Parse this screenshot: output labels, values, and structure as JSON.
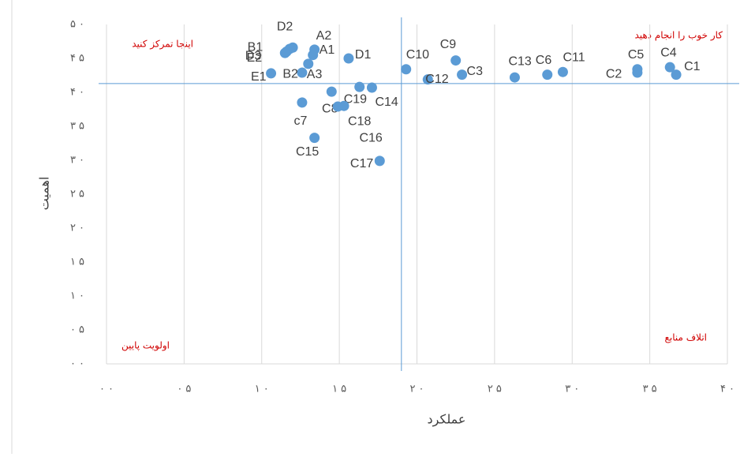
{
  "chart_data": {
    "type": "scatter",
    "x_label": "عملکرد",
    "y_label": "اهمیت",
    "annotations": [
      "اینجا تمرکز کنید",
      "کار خوب را انجام دهید",
      "اولویت پایین",
      "اتلاف منابع"
    ],
    "point_labels": [
      "C1",
      "C4",
      "C5",
      "C2",
      "C11",
      "C6",
      "C13",
      "C9",
      "C3",
      "C12",
      "C10",
      "D1",
      "A2",
      "A1",
      "A3",
      "D2",
      "E2",
      "B1",
      "D3",
      "B2",
      "E1",
      "c7",
      "C8",
      "C19",
      "C14",
      "C18",
      "C16",
      "C15",
      "C17"
    ],
    "x": [
      36.7,
      36.3,
      34.2,
      34.2,
      29.4,
      28.4,
      26.3,
      22.5,
      22.9,
      20.7,
      19.3,
      15.6,
      13.4,
      13.3,
      13.0,
      12.0,
      11.8,
      11.6,
      11.5,
      12.6,
      10.6,
      12.6,
      14.5,
      16.3,
      17.1,
      15.3,
      14.9,
      13.4,
      17.6
    ],
    "values": [
      42.6,
      43.7,
      43.4,
      42.9,
      43.0,
      42.6,
      42.2,
      44.7,
      42.6,
      41.9,
      43.4,
      45.0,
      46.3,
      45.5,
      44.2,
      46.6,
      46.4,
      46.0,
      45.8,
      42.9,
      42.8,
      38.5,
      40.1,
      40.8,
      40.7,
      38.0,
      37.9,
      33.3,
      29.9
    ],
    "color": "#5b9bd5",
    "reference_lines": {
      "x": 19.0,
      "y": 41.3
    },
    "xlim": [
      0,
      40
    ],
    "ylim": [
      0,
      50
    ],
    "xticks": [
      {
        "value": 0,
        "label": "۰ ۰"
      },
      {
        "value": 5,
        "label": "۰ ۵"
      },
      {
        "value": 10,
        "label": "۱ ۰"
      },
      {
        "value": 15,
        "label": "۱ ۵"
      },
      {
        "value": 20,
        "label": "۲ ۰"
      },
      {
        "value": 25,
        "label": "۲ ۵"
      },
      {
        "value": 30,
        "label": "۳ ۰"
      },
      {
        "value": 35,
        "label": "۳ ۵"
      },
      {
        "value": 40,
        "label": "۴ ۰"
      }
    ],
    "yticks": [
      {
        "value": 0,
        "label": "۰ ۰"
      },
      {
        "value": 5,
        "label": "۰ ۵"
      },
      {
        "value": 10,
        "label": "۱ ۰"
      },
      {
        "value": 15,
        "label": "۱ ۵"
      },
      {
        "value": 20,
        "label": "۲ ۰"
      },
      {
        "value": 25,
        "label": "۲ ۵"
      },
      {
        "value": 30,
        "label": "۳ ۰"
      },
      {
        "value": 35,
        "label": "۳ ۵"
      },
      {
        "value": 40,
        "label": "۴ ۰"
      },
      {
        "value": 45,
        "label": "۴ ۵"
      },
      {
        "value": 50,
        "label": "۵ ۰"
      }
    ],
    "grid": true
  }
}
